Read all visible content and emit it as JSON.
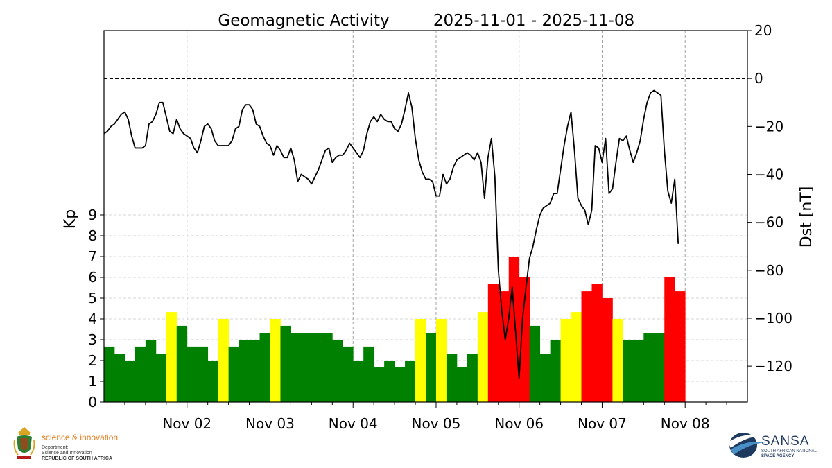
{
  "chart_data": {
    "type": "bar+line",
    "title": "Geomagnetic Activity",
    "date_range": "2025-11-01 - 2025-11-08",
    "x_tick_labels": [
      "Nov 02",
      "Nov 03",
      "Nov 04",
      "Nov 05",
      "Nov 06",
      "Nov 07",
      "Nov 08"
    ],
    "kp": {
      "ylabel": "Kp",
      "ylim": [
        0,
        9
      ],
      "yticks": [
        "0",
        "1",
        "2",
        "3",
        "4",
        "5",
        "6",
        "7",
        "8",
        "9"
      ],
      "interval_hours": 3,
      "start": "2025-11-01T00:00",
      "values": [
        2.67,
        2.33,
        2.0,
        2.67,
        3.0,
        2.33,
        4.33,
        3.67,
        2.67,
        2.67,
        2.0,
        4.0,
        2.67,
        3.0,
        3.0,
        3.33,
        4.0,
        3.67,
        3.33,
        3.33,
        3.33,
        3.33,
        3.0,
        2.67,
        2.0,
        2.67,
        1.67,
        2.0,
        1.67,
        2.0,
        4.0,
        3.33,
        4.0,
        2.33,
        1.67,
        2.33,
        4.33,
        5.67,
        5.33,
        7.0,
        6.0,
        3.67,
        2.33,
        3.0,
        4.0,
        4.33,
        5.33,
        5.67,
        5.0,
        4.0,
        3.0,
        3.0,
        3.33,
        3.33,
        6.0,
        5.33
      ],
      "colors": {
        "quiet": "#008000",
        "active": "#ffff00",
        "storm": "#ff0000"
      },
      "thresholds": {
        "active_min": 4,
        "storm_min": 5
      }
    },
    "dst": {
      "ylabel": "Dst [nT]",
      "ylim": [
        -135,
        20
      ],
      "yticks": [
        "20",
        "0",
        "-20",
        "-40",
        "-60",
        "-80",
        "-100",
        "-120"
      ],
      "reference_line": 0,
      "interval_hours": 1,
      "start": "2025-11-01T00:00",
      "values": [
        -23,
        -22,
        -20,
        -19,
        -17,
        -15,
        -14,
        -17,
        -24,
        -29,
        -29,
        -29,
        -28,
        -19,
        -18,
        -15,
        -10,
        -10,
        -16,
        -22,
        -23,
        -17,
        -21,
        -23,
        -24,
        -25,
        -29,
        -31,
        -26,
        -20,
        -19,
        -21,
        -26,
        -28,
        -28,
        -28,
        -28,
        -26,
        -21,
        -20,
        -13,
        -11,
        -11,
        -13,
        -19,
        -20,
        -24,
        -27,
        -28,
        -32,
        -28,
        -30,
        -33,
        -33,
        -29,
        -34,
        -43,
        -40,
        -41,
        -42,
        -44,
        -41,
        -38,
        -34,
        -30,
        -29,
        -35,
        -33,
        -32,
        -32,
        -30,
        -27,
        -29,
        -31,
        -33,
        -30,
        -23,
        -18,
        -16,
        -18,
        -15,
        -17,
        -18,
        -18,
        -21,
        -22,
        -19,
        -13,
        -6,
        -12,
        -25,
        -34,
        -39,
        -42,
        -42,
        -43,
        -49,
        -49,
        -40,
        -44,
        -42,
        -37,
        -34,
        -33,
        -32,
        -31,
        -32,
        -34,
        -31,
        -35,
        -50,
        -33,
        -25,
        -41,
        -80,
        -97,
        -109,
        -100,
        -87,
        -106,
        -125,
        -100,
        -87,
        -75,
        -70,
        -63,
        -57,
        -54,
        -53,
        -52,
        -48,
        -48,
        -38,
        -28,
        -20,
        -14,
        -30,
        -50,
        -53,
        -55,
        -61,
        -55,
        -28,
        -29,
        -35,
        -25,
        -48,
        -46,
        -35,
        -25,
        -26,
        -24,
        -30,
        -35,
        -31,
        -26,
        -17,
        -10,
        -6,
        -5,
        -6,
        -7,
        -30,
        -47,
        -52,
        -42,
        -69
      ]
    },
    "grid": true,
    "grid_style": "dashed"
  },
  "logos": {
    "left": {
      "line1": "science & innovation",
      "line2": "Department:",
      "line3": "Science and Innovation",
      "line4": "REPUBLIC OF SOUTH AFRICA"
    },
    "right": {
      "name": "SANSA",
      "line1": "SOUTH AFRICAN NATIONAL",
      "line2": "SPACE AGENCY"
    }
  }
}
